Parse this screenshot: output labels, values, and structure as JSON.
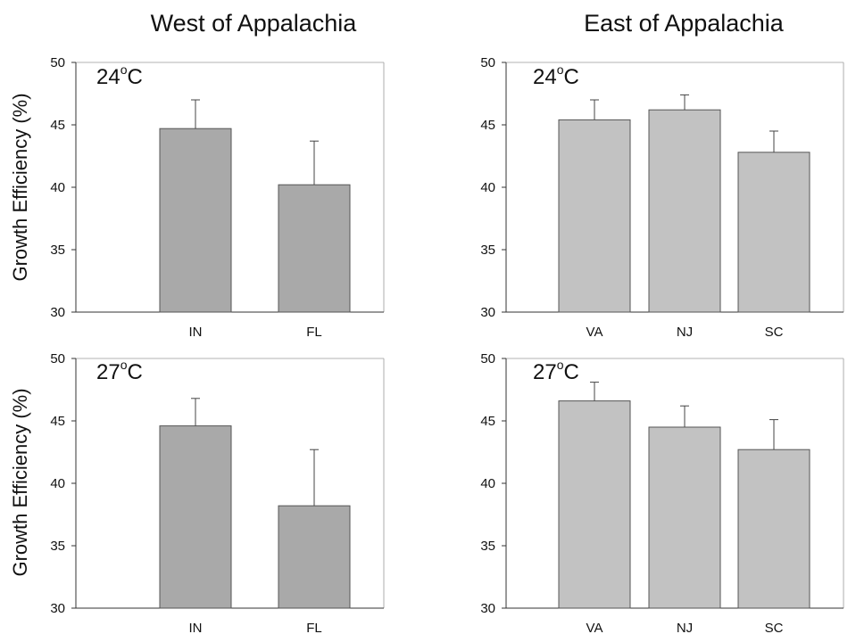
{
  "figure": {
    "column_titles": [
      "West of Appalachia",
      "East of Appalachia"
    ],
    "ylabel": "Growth Efficiency (%)"
  },
  "colors": {
    "west_bar": "#a9a9a9",
    "east_bar": "#c2c2c2",
    "axis": "#333333",
    "frame": "#9a9a9a"
  },
  "chart_data": [
    {
      "type": "bar",
      "title": "West of Appalachia",
      "annotation": {
        "main": "24",
        "sup": "o",
        "unit": "C"
      },
      "ylabel": "Growth Efficiency (%)",
      "ylim": [
        30,
        50
      ],
      "yticks": [
        30,
        35,
        40,
        45,
        50
      ],
      "categories": [
        "IN",
        "FL"
      ],
      "values": [
        44.7,
        40.2
      ],
      "error_upper": [
        47.0,
        43.7
      ]
    },
    {
      "type": "bar",
      "title": "East of Appalachia",
      "annotation": {
        "main": "24",
        "sup": "o",
        "unit": "C"
      },
      "ylabel": "",
      "ylim": [
        30,
        50
      ],
      "yticks": [
        30,
        35,
        40,
        45,
        50
      ],
      "categories": [
        "VA",
        "NJ",
        "SC"
      ],
      "values": [
        45.4,
        46.2,
        42.8
      ],
      "error_upper": [
        47.0,
        47.4,
        44.5
      ]
    },
    {
      "type": "bar",
      "title": "",
      "annotation": {
        "main": "27",
        "sup": "o",
        "unit": "C"
      },
      "ylabel": "Growth Efficiency (%)",
      "ylim": [
        30,
        50
      ],
      "yticks": [
        30,
        35,
        40,
        45,
        50
      ],
      "categories": [
        "IN",
        "FL"
      ],
      "values": [
        44.6,
        38.2
      ],
      "error_upper": [
        46.8,
        42.7
      ]
    },
    {
      "type": "bar",
      "title": "",
      "annotation": {
        "main": "27",
        "sup": "o",
        "unit": "C"
      },
      "ylabel": "",
      "ylim": [
        30,
        50
      ],
      "yticks": [
        30,
        35,
        40,
        45,
        50
      ],
      "categories": [
        "VA",
        "NJ",
        "SC"
      ],
      "values": [
        46.6,
        44.5,
        42.7
      ],
      "error_upper": [
        48.1,
        46.2,
        45.1
      ]
    }
  ]
}
